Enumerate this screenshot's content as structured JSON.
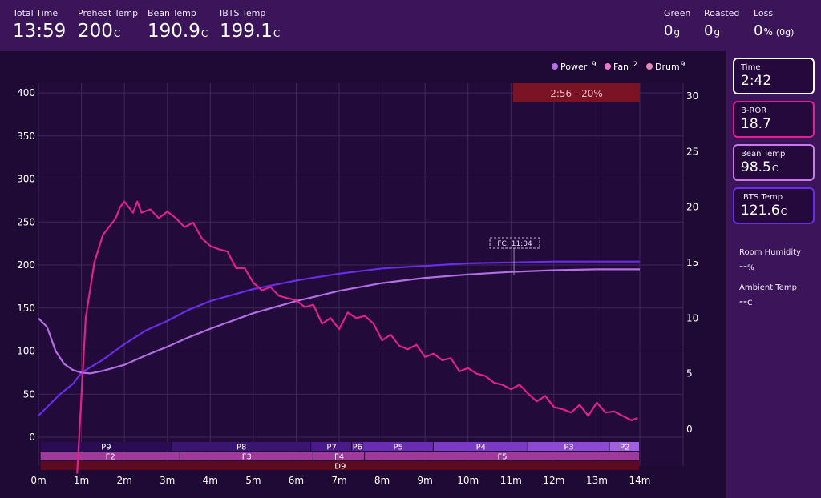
{
  "header": {
    "total_time": {
      "label": "Total Time",
      "value": "13:59"
    },
    "preheat_temp": {
      "label": "Preheat Temp",
      "value": "200",
      "unit": "C"
    },
    "bean_temp": {
      "label": "Bean Temp",
      "value": "190.9",
      "unit": "C"
    },
    "ibts_temp": {
      "label": "IBTS Temp",
      "value": "199.1",
      "unit": "C"
    },
    "green": {
      "label": "Green",
      "value": "0",
      "unit": "g"
    },
    "roasted": {
      "label": "Roasted",
      "value": "0",
      "unit": "g"
    },
    "loss": {
      "label": "Loss",
      "value": "0",
      "unit": "%",
      "extra": "(0g)"
    }
  },
  "legend": [
    {
      "name": "Power",
      "value": "9",
      "color": "#b46ee6"
    },
    {
      "name": "Fan",
      "value": "2",
      "color": "#ee74c8"
    },
    {
      "name": "Drum",
      "value": "9",
      "color": "#e48ab4"
    }
  ],
  "side": {
    "cards": [
      {
        "label": "Time",
        "value": "2:42",
        "unit": "",
        "border": "#ffffff"
      },
      {
        "label": "B-ROR",
        "value": "18.7",
        "unit": "",
        "border": "#e0208c"
      },
      {
        "label": "Bean Temp",
        "value": "98.5",
        "unit": "C",
        "border": "#c87ae8"
      },
      {
        "label": "IBTS Temp",
        "value": "121.6",
        "unit": "C",
        "border": "#6a2ce8"
      }
    ],
    "room_humidity": {
      "label": "Room Humidity",
      "value": "--",
      "unit": "%"
    },
    "ambient_temp": {
      "label": "Ambient Temp",
      "value": "--",
      "unit": "C"
    }
  },
  "chart_data": {
    "type": "line",
    "x_ticks": [
      "0m",
      "1m",
      "2m",
      "3m",
      "4m",
      "5m",
      "6m",
      "7m",
      "8m",
      "9m",
      "10m",
      "11m",
      "12m",
      "13m",
      "14m"
    ],
    "xlim": [
      0,
      14
    ],
    "y_left_ticks": [
      "400",
      "350",
      "300",
      "250",
      "200",
      "150",
      "100",
      "50",
      "0"
    ],
    "ylim_left": [
      0,
      400
    ],
    "y_right_ticks": [
      "30",
      "25",
      "20",
      "15",
      "10",
      "5",
      "0"
    ],
    "ylim_right": [
      0,
      30
    ],
    "grid": true,
    "legend_position": "top-right",
    "annotations": [
      {
        "text": "2:56 - 20%",
        "x_start": 11.05,
        "x_end": 14
      },
      {
        "text": "FC: 11:04",
        "x": 11.07
      }
    ],
    "series": [
      {
        "color": "#6a2ce8",
        "axis": "left",
        "x": [
          0,
          0.2,
          0.5,
          0.8,
          1,
          1.5,
          2,
          2.5,
          3,
          3.5,
          4,
          5,
          6,
          7,
          8,
          9,
          10,
          11,
          12,
          13,
          14
        ],
        "y": [
          25,
          35,
          50,
          62,
          75,
          90,
          108,
          124,
          135,
          148,
          158,
          172,
          182,
          190,
          196,
          199,
          202,
          203,
          204,
          204,
          204
        ]
      },
      {
        "color": "#b46ee6",
        "axis": "left",
        "x": [
          0,
          0.2,
          0.4,
          0.6,
          0.8,
          1,
          1.2,
          1.5,
          2,
          2.5,
          3,
          3.5,
          4,
          5,
          6,
          7,
          8,
          9,
          10,
          11,
          12,
          13,
          14
        ],
        "y": [
          138,
          128,
          100,
          85,
          78,
          75,
          74,
          77,
          84,
          95,
          105,
          116,
          126,
          144,
          158,
          170,
          179,
          185,
          189,
          192,
          194,
          195,
          195
        ]
      },
      {
        "color": "#e0208c",
        "axis": "right",
        "x": [
          0.9,
          1.0,
          1.1,
          1.3,
          1.5,
          1.7,
          1.8,
          1.9,
          2.0,
          2.1,
          2.2,
          2.3,
          2.4,
          2.6,
          2.8,
          3.0,
          3.2,
          3.4,
          3.6,
          3.8,
          4.0,
          4.2,
          4.4,
          4.6,
          4.8,
          5.0,
          5.2,
          5.4,
          5.6,
          5.8,
          6.0,
          6.2,
          6.4,
          6.6,
          6.8,
          7.0,
          7.2,
          7.4,
          7.6,
          7.8,
          8.0,
          8.2,
          8.4,
          8.6,
          8.8,
          9.0,
          9.2,
          9.4,
          9.6,
          9.8,
          10.0,
          10.2,
          10.4,
          10.6,
          10.8,
          11.0,
          11.2,
          11.4,
          11.6,
          11.8,
          12.0,
          12.2,
          12.4,
          12.6,
          12.8,
          13.0,
          13.2,
          13.4,
          13.6,
          13.8,
          13.95
        ],
        "y": [
          -4,
          3,
          10,
          15,
          17.5,
          18.5,
          19,
          20,
          20.5,
          20,
          19.5,
          20.5,
          19.5,
          19.8,
          19,
          19.6,
          19,
          18.2,
          18.6,
          17.2,
          16.5,
          16.2,
          16,
          14.5,
          14.5,
          13.2,
          12.5,
          12.8,
          12,
          11.8,
          11.6,
          11,
          11.2,
          9.5,
          10,
          9,
          10.5,
          10,
          10.2,
          9.5,
          8,
          8.5,
          7.5,
          7.2,
          7.6,
          6.5,
          6.8,
          6.2,
          6.4,
          5.2,
          5.5,
          5,
          4.8,
          4.2,
          4,
          3.6,
          4,
          3.2,
          2.5,
          3,
          2,
          1.8,
          1.5,
          2.2,
          1.2,
          2.4,
          1.5,
          1.6,
          1.2,
          0.8,
          1
        ]
      }
    ],
    "bands": [
      {
        "row": 0,
        "color": "#3e1568",
        "segments": [
          {
            "label": "P9",
            "start": 0.05,
            "end": 3.1
          },
          {
            "label": "P8",
            "start": 3.1,
            "end": 6.35
          },
          {
            "label": "P7",
            "start": 6.35,
            "end": 7.3
          },
          {
            "label": "P6",
            "start": 7.3,
            "end": 7.55
          },
          {
            "label": "P5",
            "start": 7.55,
            "end": 9.2
          },
          {
            "label": "P4",
            "start": 9.2,
            "end": 11.4
          },
          {
            "label": "P3",
            "start": 11.4,
            "end": 13.3
          },
          {
            "label": "P2",
            "start": 13.3,
            "end": 14
          }
        ]
      },
      {
        "row": 1,
        "color": "#9e3a9a",
        "segments": [
          {
            "label": "F2",
            "start": 0.05,
            "end": 3.3
          },
          {
            "label": "F3",
            "start": 3.3,
            "end": 6.4
          },
          {
            "label": "F4",
            "start": 6.4,
            "end": 7.6
          },
          {
            "label": "F5",
            "start": 7.6,
            "end": 14
          }
        ]
      },
      {
        "row": 2,
        "color": "#5c0a1f",
        "segments": [
          {
            "label": "D9",
            "start": 0.05,
            "end": 14
          }
        ]
      }
    ]
  }
}
